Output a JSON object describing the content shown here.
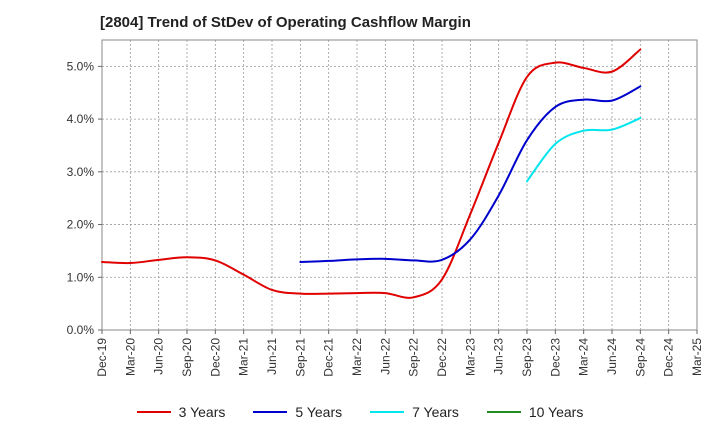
{
  "chart_data": {
    "type": "line",
    "title": "[2804]  Trend of StDev of Operating Cashflow Margin",
    "xlabel": "",
    "ylabel": "",
    "ylim": [
      0,
      5.5
    ],
    "y_ticks": [
      "0.0%",
      "1.0%",
      "2.0%",
      "3.0%",
      "4.0%",
      "5.0%"
    ],
    "y_tick_values": [
      0,
      1,
      2,
      3,
      4,
      5
    ],
    "x_ticks": [
      "Dec-19",
      "Mar-20",
      "Jun-20",
      "Sep-20",
      "Dec-20",
      "Mar-21",
      "Jun-21",
      "Sep-21",
      "Dec-21",
      "Mar-22",
      "Jun-22",
      "Sep-22",
      "Dec-22",
      "Mar-23",
      "Jun-23",
      "Sep-23",
      "Dec-23",
      "Mar-24",
      "Jun-24",
      "Sep-24",
      "Dec-24",
      "Mar-25"
    ],
    "grid": true,
    "legend_position": "bottom",
    "series": [
      {
        "name": "3 Years",
        "color": "#e00000",
        "values": [
          1.29,
          1.27,
          1.33,
          1.38,
          1.32,
          1.05,
          0.76,
          0.69,
          0.69,
          0.7,
          0.7,
          0.62,
          0.96,
          2.2,
          3.55,
          4.8,
          5.07,
          4.97,
          4.9,
          5.32,
          null,
          null
        ]
      },
      {
        "name": "5 Years",
        "color": "#0000cc",
        "values": [
          null,
          null,
          null,
          null,
          null,
          null,
          null,
          1.29,
          1.31,
          1.34,
          1.35,
          1.32,
          1.33,
          1.72,
          2.55,
          3.6,
          4.23,
          4.37,
          4.35,
          4.62,
          null,
          null
        ]
      },
      {
        "name": "7 Years",
        "color": "#00e5ee",
        "values": [
          null,
          null,
          null,
          null,
          null,
          null,
          null,
          null,
          null,
          null,
          null,
          null,
          null,
          null,
          null,
          2.82,
          3.53,
          3.78,
          3.8,
          4.02,
          null,
          null
        ]
      },
      {
        "name": "10 Years",
        "color": "#228b22",
        "values": [
          null,
          null,
          null,
          null,
          null,
          null,
          null,
          null,
          null,
          null,
          null,
          null,
          null,
          null,
          null,
          null,
          null,
          null,
          null,
          null,
          null,
          null
        ]
      }
    ]
  }
}
